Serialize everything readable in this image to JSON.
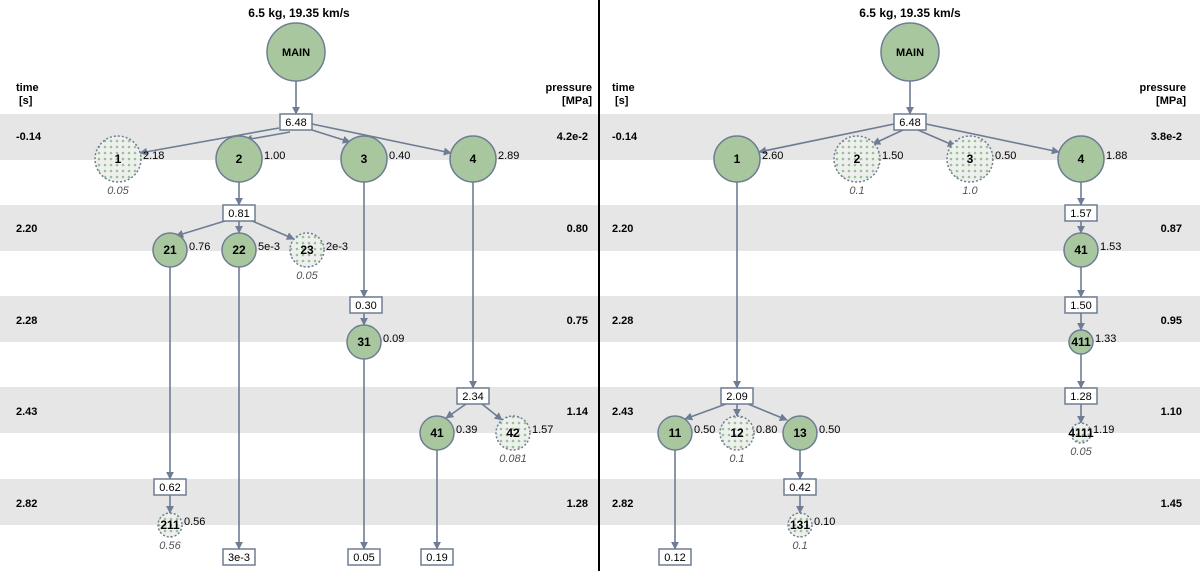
{
  "panels": [
    {
      "title": "6.5 kg, 19.35 km/s",
      "time_title": [
        "time",
        "[s]"
      ],
      "pressure_title": [
        "pressure",
        "[MPa]"
      ],
      "rows": [
        {
          "time": "-0.14",
          "pressure": "4.2e-2"
        },
        {
          "time": "2.20",
          "pressure": "0.80"
        },
        {
          "time": "2.28",
          "pressure": "0.75"
        },
        {
          "time": "2.43",
          "pressure": "1.14"
        },
        {
          "time": "2.82",
          "pressure": "1.28"
        }
      ],
      "main_label": "MAIN",
      "boxes": [
        {
          "id": "b0",
          "text": "6.48"
        },
        {
          "id": "b1",
          "text": "0.81"
        },
        {
          "id": "b2",
          "text": "0.30"
        },
        {
          "id": "b3",
          "text": "2.34"
        },
        {
          "id": "b4",
          "text": "0.62"
        },
        {
          "id": "t1",
          "text": "3e-3"
        },
        {
          "id": "t2",
          "text": "0.05"
        },
        {
          "id": "t3",
          "text": "0.19"
        }
      ],
      "nodes": [
        {
          "id": "n1",
          "label": "1",
          "mass": "2.18",
          "sub": "0.05",
          "dotted": true
        },
        {
          "id": "n2",
          "label": "2",
          "mass": "1.00",
          "dotted": false
        },
        {
          "id": "n3",
          "label": "3",
          "mass": "0.40",
          "dotted": false
        },
        {
          "id": "n4",
          "label": "4",
          "mass": "2.89",
          "dotted": false
        },
        {
          "id": "n21",
          "label": "21",
          "mass": "0.76",
          "dotted": false
        },
        {
          "id": "n22",
          "label": "22",
          "mass": "5e-3",
          "dotted": false
        },
        {
          "id": "n23",
          "label": "23",
          "mass": "2e-3",
          "sub": "0.05",
          "dotted": true
        },
        {
          "id": "n31",
          "label": "31",
          "mass": "0.09",
          "dotted": false
        },
        {
          "id": "n41",
          "label": "41",
          "mass": "0.39",
          "dotted": false
        },
        {
          "id": "n42",
          "label": "42",
          "mass": "1.57",
          "sub": "0.081",
          "dotted": true
        },
        {
          "id": "n211",
          "label": "211",
          "mass": "0.56",
          "sub": "0.56",
          "dotted": true
        }
      ]
    },
    {
      "title": "6.5 kg, 19.35 km/s",
      "time_title": [
        "time",
        "[s]"
      ],
      "pressure_title": [
        "pressure",
        "[MPa]"
      ],
      "rows": [
        {
          "time": "-0.14",
          "pressure": "3.8e-2"
        },
        {
          "time": "2.20",
          "pressure": "0.87"
        },
        {
          "time": "2.28",
          "pressure": "0.95"
        },
        {
          "time": "2.43",
          "pressure": "1.10"
        },
        {
          "time": "2.82",
          "pressure": "1.45"
        }
      ],
      "main_label": "MAIN",
      "boxes": [
        {
          "id": "b0",
          "text": "6.48"
        },
        {
          "id": "b1",
          "text": "1.57"
        },
        {
          "id": "b2",
          "text": "1.50"
        },
        {
          "id": "b3",
          "text": "2.09"
        },
        {
          "id": "b4",
          "text": "1.28"
        },
        {
          "id": "b5",
          "text": "0.42"
        },
        {
          "id": "t1",
          "text": "0.12"
        }
      ],
      "nodes": [
        {
          "id": "n1",
          "label": "1",
          "mass": "2.60",
          "dotted": false
        },
        {
          "id": "n2",
          "label": "2",
          "mass": "1.50",
          "sub": "0.1",
          "dotted": true
        },
        {
          "id": "n3",
          "label": "3",
          "mass": "0.50",
          "sub": "1.0",
          "dotted": true
        },
        {
          "id": "n4",
          "label": "4",
          "mass": "1.88",
          "dotted": false
        },
        {
          "id": "n41",
          "label": "41",
          "mass": "1.53",
          "dotted": false
        },
        {
          "id": "n411",
          "label": "411",
          "mass": "1.33",
          "dotted": false
        },
        {
          "id": "n4111",
          "label": "4111",
          "mass": "1.19",
          "sub": "0.05",
          "dotted": true
        },
        {
          "id": "n11",
          "label": "11",
          "mass": "0.50",
          "dotted": false
        },
        {
          "id": "n12",
          "label": "12",
          "mass": "0.80",
          "sub": "0.1",
          "dotted": true
        },
        {
          "id": "n13",
          "label": "13",
          "mass": "0.50",
          "dotted": false
        },
        {
          "id": "n131",
          "label": "131",
          "mass": "0.10",
          "sub": "0.1",
          "dotted": true
        }
      ]
    }
  ],
  "colors": {
    "node_fill": "#a9c79f",
    "node_stroke": "#6e7d93",
    "dotted_fill": "#eef0ee",
    "dot_color": "#9cbf94",
    "line": "#6e7d93",
    "band": "#e6e6e6",
    "divider": "#000000"
  }
}
